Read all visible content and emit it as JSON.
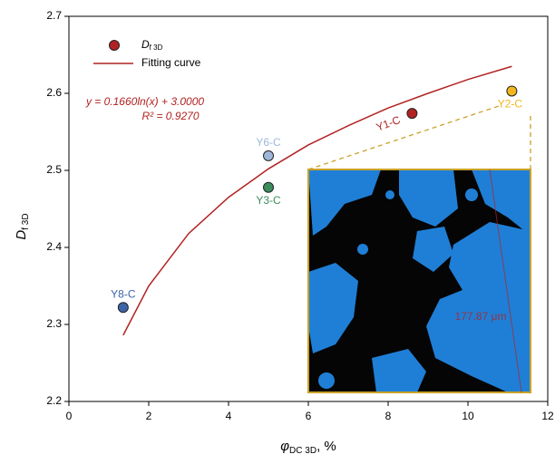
{
  "chart_data": {
    "type": "scatter",
    "x_label": {
      "main": "φ",
      "sub": "DC 3D",
      "suffix": ", %"
    },
    "y_label": {
      "main": "D",
      "sub": "f 3D"
    },
    "xlim": [
      0,
      12
    ],
    "xticks": [
      0,
      2,
      4,
      6,
      8,
      10,
      12
    ],
    "ylim": [
      2.2,
      2.7
    ],
    "yticks": [
      2.2,
      2.3,
      2.4,
      2.5,
      2.6,
      2.7
    ],
    "series": [
      {
        "name": "D",
        "name_sub": "f 3D",
        "color": "#b22222",
        "x": [
          1.36,
          5.0,
          5.0,
          8.6,
          11.1
        ],
        "values": [
          2.322,
          2.519,
          2.478,
          2.574,
          2.603
        ],
        "labels": [
          "Y8-C",
          "Y6-C",
          "Y3-C",
          "Y1-C",
          "Y2-C"
        ],
        "colors": [
          "#3c64a6",
          "#9db6d9",
          "#3c8c5c",
          "#b22222",
          "#f3b61f"
        ]
      },
      {
        "name": "Fitting curve",
        "type": "line",
        "color": "#b22222",
        "x": [
          1.36,
          2,
          3,
          4,
          5,
          6,
          7,
          8,
          9,
          10,
          11.1
        ],
        "values": [
          2.286,
          2.35,
          2.418,
          2.465,
          2.502,
          2.533,
          2.558,
          2.581,
          2.6,
          2.618,
          2.635
        ]
      }
    ],
    "annotations": [
      "y = 0.1660ln(x) + 3.0000",
      "R² = 0.9270",
      "177.87 μm"
    ]
  }
}
